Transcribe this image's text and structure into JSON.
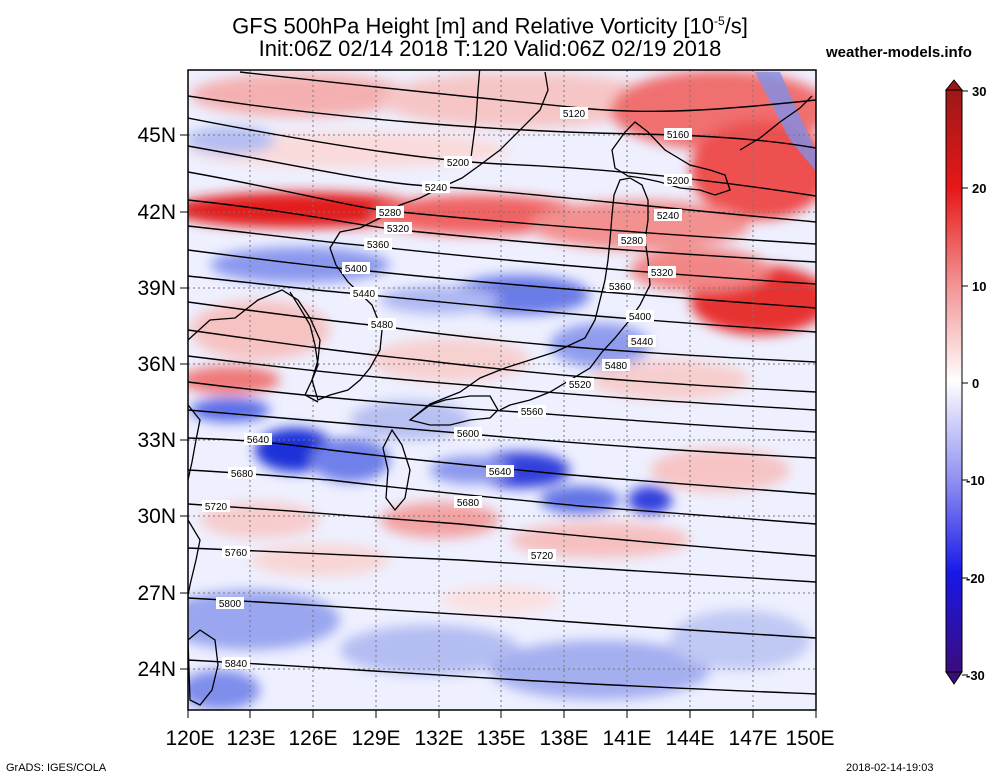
{
  "title_line1": "GFS 500hPa Height [m] and Relative Vorticity [10",
  "title_exp": "-5",
  "title_unit": "/s]",
  "title_line2": "Init:06Z 02/14 2018 T:120 Valid:06Z 02/19 2018",
  "site": "weather-models.info",
  "credit": "GrADS: IGES/COLA",
  "timestamp": "2018-02-14-19:03",
  "map": {
    "lon_labels": [
      "120E",
      "123E",
      "126E",
      "129E",
      "132E",
      "135E",
      "138E",
      "141E",
      "144E",
      "147E",
      "150E"
    ],
    "lat_labels": [
      "45N",
      "42N",
      "39N",
      "36N",
      "33N",
      "30N",
      "27N",
      "24N"
    ],
    "contour_labels": [
      "5120",
      "5160",
      "5200",
      "5200",
      "5240",
      "5240",
      "5280",
      "5280",
      "5320",
      "5320",
      "5360",
      "5360",
      "5400",
      "5400",
      "5440",
      "5440",
      "5480",
      "5480",
      "5520",
      "5560",
      "5600",
      "5640",
      "5640",
      "5680",
      "5680",
      "5720",
      "5720",
      "5760",
      "5800",
      "5840"
    ],
    "colors": {
      "positive": "#e8141c",
      "negative": "#1c28e8",
      "zero": "#ffffff",
      "land_outline": "#000000"
    }
  },
  "colorbar": {
    "labels": [
      "30",
      "20",
      "10",
      "0",
      "-10",
      "-20",
      "-30"
    ],
    "min": -30,
    "max": 30
  }
}
